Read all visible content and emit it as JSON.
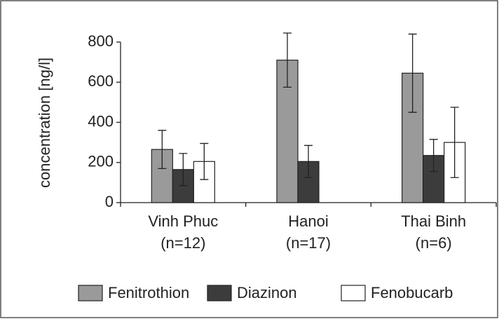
{
  "chart_data": {
    "type": "bar",
    "ylabel": "concentration [ng/l]",
    "categories": [
      [
        "Vinh Phuc",
        "(n=12)"
      ],
      [
        "Hanoi",
        "(n=17)"
      ],
      [
        "Thai Binh",
        "(n=6)"
      ]
    ],
    "series": [
      {
        "name": "Fenitrothion",
        "color": "#9a9a9a",
        "values": [
          265,
          710,
          645
        ],
        "errors": [
          95,
          135,
          195
        ]
      },
      {
        "name": "Diazinon",
        "color": "#3c3c3c",
        "values": [
          165,
          205,
          235
        ],
        "errors": [
          80,
          80,
          80
        ]
      },
      {
        "name": "Fenobucarb",
        "color": "#ffffff",
        "values": [
          205,
          null,
          300
        ],
        "errors": [
          90,
          null,
          175
        ]
      }
    ],
    "ylim": [
      0,
      800
    ],
    "yticks": [
      0,
      200,
      400,
      600,
      800
    ],
    "grid": false
  }
}
